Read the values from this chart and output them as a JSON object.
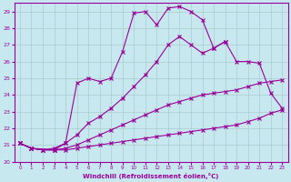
{
  "xlabel": "Windchill (Refroidissement éolien,°C)",
  "x": [
    0,
    1,
    2,
    3,
    4,
    5,
    6,
    7,
    8,
    9,
    10,
    11,
    12,
    13,
    14,
    15,
    16,
    17,
    18,
    19,
    20,
    21,
    22,
    23
  ],
  "line1": [
    21.1,
    20.8,
    20.7,
    20.7,
    20.7,
    20.8,
    20.9,
    21.0,
    21.1,
    21.2,
    21.3,
    21.4,
    21.5,
    21.6,
    21.7,
    21.8,
    21.9,
    22.0,
    22.1,
    22.2,
    22.4,
    22.6,
    22.9,
    23.1
  ],
  "line2": [
    21.1,
    20.8,
    20.7,
    20.7,
    20.8,
    21.0,
    21.3,
    21.6,
    21.9,
    22.2,
    22.5,
    22.8,
    23.1,
    23.4,
    23.6,
    23.8,
    24.0,
    24.1,
    24.2,
    24.3,
    24.5,
    24.7,
    24.8,
    24.9
  ],
  "line3": [
    21.1,
    20.8,
    20.7,
    20.8,
    21.1,
    21.6,
    22.3,
    22.7,
    23.2,
    23.8,
    24.5,
    25.2,
    26.0,
    27.0,
    27.5,
    27.0,
    26.5,
    26.8,
    27.2,
    26.0,
    26.0,
    25.9,
    24.1,
    23.2
  ],
  "line4": [
    21.1,
    20.8,
    null,
    20.7,
    21.1,
    24.7,
    25.0,
    24.8,
    25.0,
    26.6,
    28.9,
    29.0,
    28.2,
    29.2,
    29.3,
    29.0,
    28.5,
    26.8,
    27.2,
    null,
    null,
    null,
    null,
    null
  ],
  "ylim": [
    20,
    29.5
  ],
  "xlim": [
    -0.5,
    23.5
  ],
  "yticks": [
    20,
    21,
    22,
    23,
    24,
    25,
    26,
    27,
    28,
    29
  ],
  "xticks": [
    0,
    1,
    2,
    3,
    4,
    5,
    6,
    7,
    8,
    9,
    10,
    11,
    12,
    13,
    14,
    15,
    16,
    17,
    18,
    19,
    20,
    21,
    22,
    23
  ],
  "line_color": "#990099",
  "bg_color": "#c8e8f0",
  "grid_color": "#aacccc"
}
